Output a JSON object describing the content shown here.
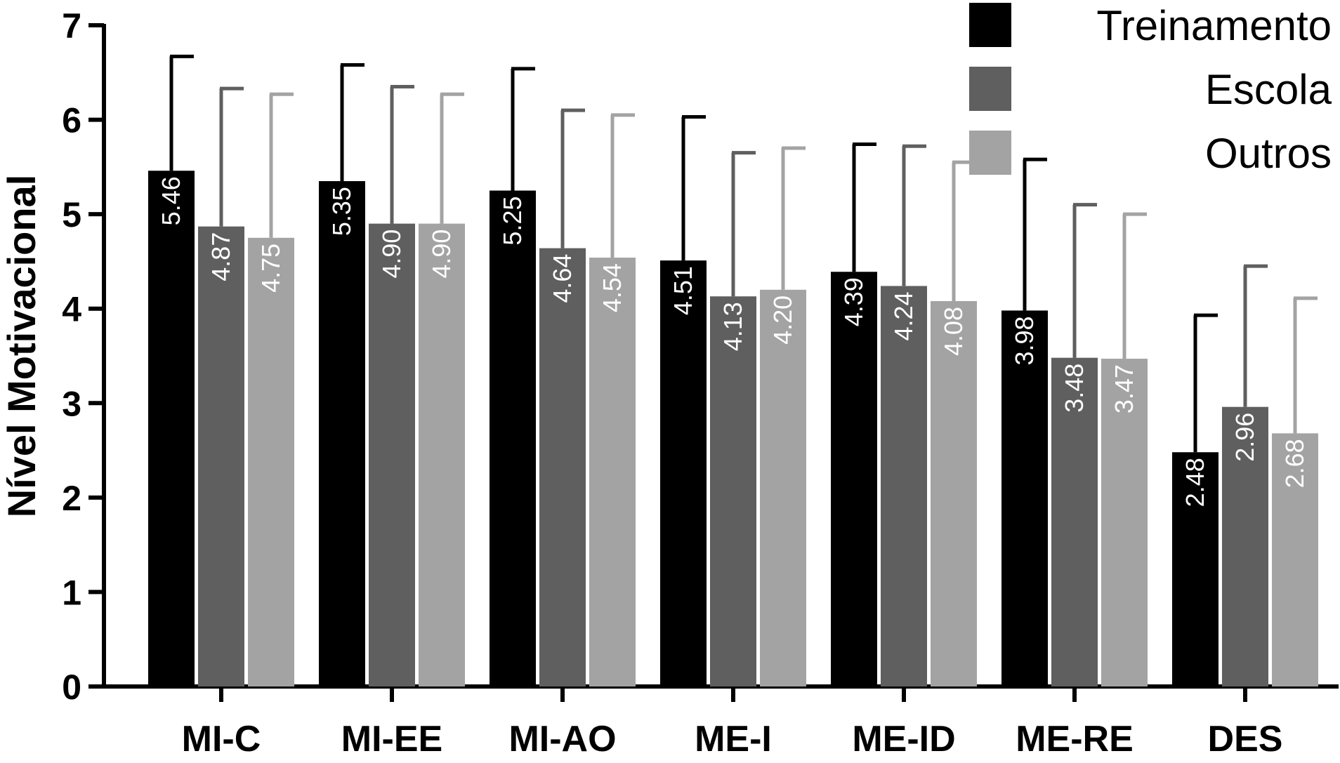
{
  "chart_data": {
    "type": "bar",
    "title": "",
    "xlabel": "",
    "ylabel": "Nível Motivacional",
    "ylim": [
      0,
      7
    ],
    "yticks": [
      0,
      1,
      2,
      3,
      4,
      5,
      6,
      7
    ],
    "categories": [
      "MI-C",
      "MI-EE",
      "MI-AO",
      "ME-I",
      "ME-ID",
      "ME-RE",
      "DES"
    ],
    "legend_position": "top-right",
    "grid": false,
    "series": [
      {
        "name": "Treinamento",
        "color": "#000000",
        "label_color": "#ffffff",
        "values": [
          5.46,
          5.35,
          5.25,
          4.51,
          4.39,
          3.98,
          2.48
        ],
        "value_labels": [
          "5.46",
          "5.35",
          "5.25",
          "4.51",
          "4.39",
          "3.98",
          "2.48"
        ],
        "error_upper": [
          6.67,
          6.58,
          6.54,
          6.03,
          5.74,
          5.58,
          3.93
        ]
      },
      {
        "name": "Escola",
        "color": "#5f5f5f",
        "label_color": "#ffffff",
        "values": [
          4.87,
          4.9,
          4.64,
          4.13,
          4.24,
          3.48,
          2.96
        ],
        "value_labels": [
          "4.87",
          "4.90",
          "4.64",
          "4.13",
          "4.24",
          "3.48",
          "2.96"
        ],
        "error_upper": [
          6.33,
          6.35,
          6.1,
          5.65,
          5.72,
          5.1,
          4.45
        ]
      },
      {
        "name": "Outros",
        "color": "#a3a3a3",
        "label_color": "#ffffff",
        "values": [
          4.75,
          4.9,
          4.54,
          4.2,
          4.08,
          3.47,
          2.68
        ],
        "value_labels": [
          "4.75",
          "4.90",
          "4.54",
          "4.20",
          "4.08",
          "3.47",
          "2.68"
        ],
        "error_upper": [
          6.27,
          6.27,
          6.05,
          5.7,
          5.55,
          5.0,
          4.11
        ]
      }
    ]
  }
}
